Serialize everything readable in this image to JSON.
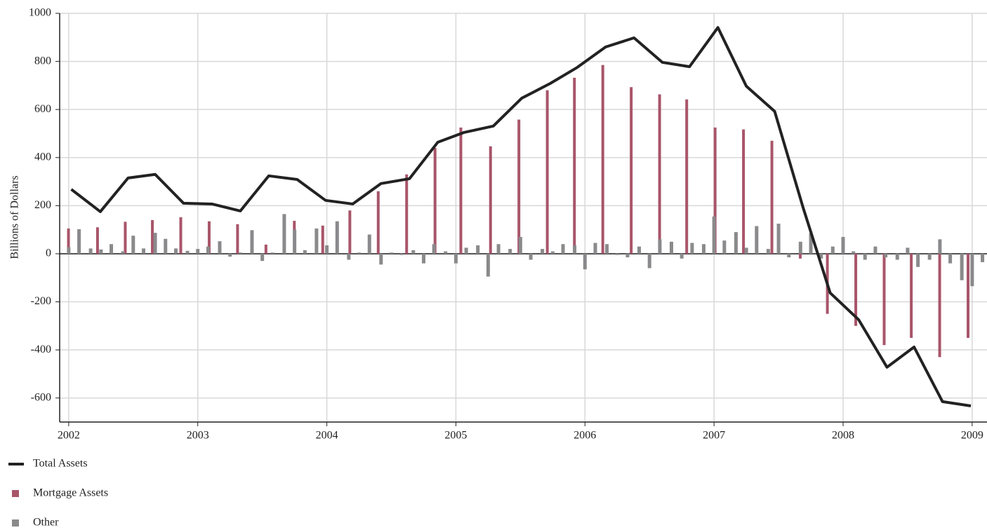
{
  "chart_data": {
    "type": "bar+line",
    "y_label": "Billions of Dollars",
    "xlim": [
      2001.93,
      2009.115
    ],
    "xticks": [
      2002,
      2003,
      2004,
      2005,
      2006,
      2007,
      2008,
      2009
    ],
    "ylim": [
      -700,
      1000
    ],
    "yticks": [
      -600,
      -400,
      -200,
      0,
      200,
      400,
      600,
      800,
      1000
    ],
    "grid": true,
    "legend": "bottom-left",
    "x": [
      2002.02,
      2002.245,
      2002.46,
      2002.67,
      2002.89,
      2003.11,
      2003.33,
      2003.55,
      2003.77,
      2003.99,
      2004.2,
      2004.42,
      2004.64,
      2004.86,
      2005.06,
      2005.29,
      2005.51,
      2005.73,
      2005.94,
      2006.16,
      2006.38,
      2006.6,
      2006.81,
      2007.03,
      2007.25,
      2007.47,
      2007.69,
      2007.9,
      2008.12,
      2008.34,
      2008.55,
      2008.77,
      2008.99
    ],
    "series": [
      {
        "name": "Total Assets",
        "type": "line",
        "color": "#222222",
        "values": [
          268,
          175,
          315,
          330,
          210,
          207,
          178,
          324,
          309,
          222,
          207,
          292,
          312,
          464,
          504,
          531,
          647,
          708,
          775,
          860,
          898,
          796,
          778,
          941,
          697,
          592,
          192,
          -163,
          -274,
          -472,
          -388,
          -615,
          -633
        ]
      },
      {
        "name": "Mortgage Assets",
        "type": "bar",
        "color": "#a8556a",
        "values": [
          105,
          110,
          133,
          140,
          152,
          135,
          123,
          38,
          137,
          117,
          180,
          260,
          330,
          440,
          525,
          447,
          558,
          680,
          732,
          785,
          693,
          663,
          642,
          525,
          517,
          470,
          -20,
          -250,
          -300,
          -380,
          -350,
          -430,
          -350
        ]
      },
      {
        "name": "Other",
        "type": "bar",
        "color": "#8a8a8c",
        "x": [
          2002.0,
          2002.08,
          2002.17,
          2002.25,
          2002.33,
          2002.42,
          2002.5,
          2002.58,
          2002.67,
          2002.75,
          2002.83,
          2002.92,
          2003.0,
          2003.08,
          2003.17,
          2003.25,
          2003.33,
          2003.42,
          2003.5,
          2003.58,
          2003.67,
          2003.75,
          2003.83,
          2003.92,
          2004.0,
          2004.08,
          2004.17,
          2004.25,
          2004.33,
          2004.42,
          2004.5,
          2004.58,
          2004.67,
          2004.75,
          2004.83,
          2004.92,
          2005.0,
          2005.08,
          2005.17,
          2005.25,
          2005.33,
          2005.42,
          2005.5,
          2005.58,
          2005.67,
          2005.75,
          2005.83,
          2005.92,
          2006.0,
          2006.08,
          2006.17,
          2006.25,
          2006.33,
          2006.42,
          2006.5,
          2006.58,
          2006.67,
          2006.75,
          2006.83,
          2006.92,
          2007.0,
          2007.08,
          2007.17,
          2007.25,
          2007.33,
          2007.42,
          2007.5,
          2007.58,
          2007.67,
          2007.75,
          2007.83,
          2007.92,
          2008.0,
          2008.08,
          2008.17,
          2008.25,
          2008.33,
          2008.42,
          2008.5,
          2008.58,
          2008.67,
          2008.75,
          2008.83,
          2008.92,
          2009.0,
          2009.08
        ],
        "values": [
          27,
          102,
          22,
          18,
          40,
          10,
          75,
          22,
          87,
          62,
          22,
          12,
          20,
          30,
          52,
          -12,
          5,
          98,
          -30,
          5,
          165,
          100,
          15,
          105,
          35,
          135,
          -25,
          5,
          80,
          -45,
          5,
          -5,
          15,
          -40,
          40,
          10,
          -40,
          25,
          35,
          -95,
          40,
          20,
          70,
          -25,
          20,
          10,
          40,
          35,
          -65,
          45,
          40,
          -5,
          -15,
          30,
          -60,
          60,
          50,
          -20,
          45,
          40,
          155,
          55,
          90,
          25,
          115,
          20,
          125,
          -15,
          50,
          85,
          -20,
          30,
          70,
          10,
          -25,
          30,
          -15,
          -25,
          25,
          -55,
          -25,
          60,
          -40,
          -110,
          -135,
          -35
        ]
      }
    ]
  }
}
